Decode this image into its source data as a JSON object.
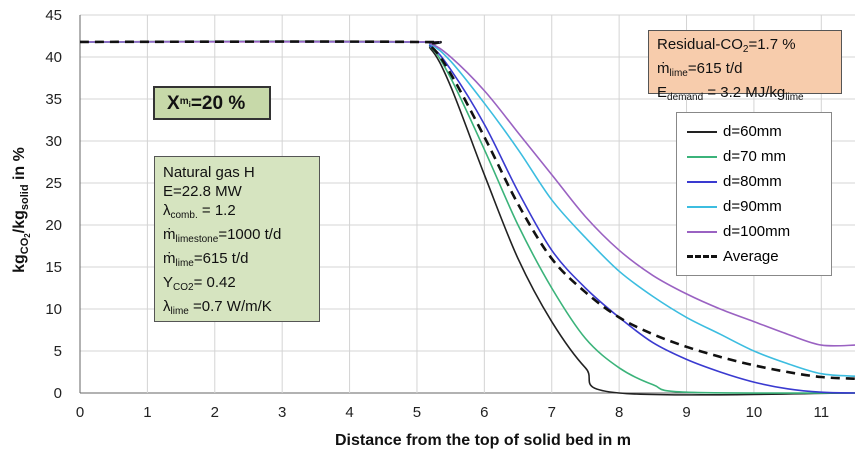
{
  "chart_data": {
    "type": "line",
    "xlabel": "Distance from the top of solid bed in m",
    "ylabel": {
      "base": "kg",
      "sub1": "CO",
      "sub1b": "2",
      "mid": "/kg",
      "sub2": "solid",
      "tail": " in %"
    },
    "xlim": [
      0,
      11.5
    ],
    "ylim": [
      0,
      45
    ],
    "xticks": [
      "0",
      "1",
      "2",
      "3",
      "4",
      "5",
      "6",
      "7",
      "8",
      "9",
      "10",
      "11"
    ],
    "yticks": [
      "0",
      "5",
      "10",
      "15",
      "20",
      "25",
      "30",
      "35",
      "40",
      "45"
    ],
    "grid": true,
    "series": [
      {
        "name": "d=60mm",
        "color": "#222222",
        "dash": false,
        "points": [
          [
            0,
            41.8
          ],
          [
            4.9,
            41.8
          ],
          [
            5.2,
            41
          ],
          [
            5.5,
            36.5
          ],
          [
            6,
            26
          ],
          [
            6.5,
            16
          ],
          [
            7,
            8.5
          ],
          [
            7.5,
            3
          ],
          [
            8,
            0
          ],
          [
            11.5,
            0
          ]
        ]
      },
      {
        "name": "d=70 mm",
        "color": "#3bb37a",
        "dash": false,
        "points": [
          [
            0,
            41.8
          ],
          [
            4.9,
            41.8
          ],
          [
            5.2,
            41.2
          ],
          [
            5.5,
            37.5
          ],
          [
            6,
            29
          ],
          [
            6.5,
            20
          ],
          [
            7,
            12.5
          ],
          [
            7.5,
            6.5
          ],
          [
            8,
            3
          ],
          [
            8.5,
            1
          ],
          [
            9,
            0.1
          ],
          [
            11.5,
            0
          ]
        ]
      },
      {
        "name": "d=80mm",
        "color": "#3a3ad0",
        "dash": false,
        "points": [
          [
            0,
            41.8
          ],
          [
            4.9,
            41.8
          ],
          [
            5.2,
            41.3
          ],
          [
            5.5,
            38.5
          ],
          [
            6,
            32
          ],
          [
            6.5,
            24
          ],
          [
            7,
            17
          ],
          [
            7.5,
            12.5
          ],
          [
            8,
            9
          ],
          [
            8.5,
            6
          ],
          [
            9,
            4
          ],
          [
            9.5,
            2.5
          ],
          [
            10,
            1.3
          ],
          [
            10.5,
            0.5
          ],
          [
            11,
            0.1
          ],
          [
            11.5,
            0
          ]
        ]
      },
      {
        "name": "d=90mm",
        "color": "#3cbde0",
        "dash": false,
        "points": [
          [
            0,
            41.8
          ],
          [
            4.9,
            41.8
          ],
          [
            5.2,
            41.5
          ],
          [
            5.5,
            39.5
          ],
          [
            6,
            34.5
          ],
          [
            6.5,
            29
          ],
          [
            7,
            23
          ],
          [
            7.5,
            18.5
          ],
          [
            8,
            14.5
          ],
          [
            8.5,
            11.5
          ],
          [
            9,
            9
          ],
          [
            9.5,
            7
          ],
          [
            10,
            5
          ],
          [
            10.5,
            3.5
          ],
          [
            11,
            2.3
          ],
          [
            11.5,
            2
          ]
        ]
      },
      {
        "name": "d=100mm",
        "color": "#9a62c2",
        "dash": false,
        "points": [
          [
            0,
            41.8
          ],
          [
            4.9,
            41.8
          ],
          [
            5.2,
            41.6
          ],
          [
            5.5,
            40
          ],
          [
            6,
            36
          ],
          [
            6.5,
            31
          ],
          [
            7,
            26
          ],
          [
            7.5,
            21
          ],
          [
            8,
            17
          ],
          [
            8.5,
            14
          ],
          [
            9,
            11.8
          ],
          [
            9.5,
            10
          ],
          [
            10,
            8.5
          ],
          [
            10.5,
            7
          ],
          [
            11,
            5.7
          ],
          [
            11.5,
            5.7
          ]
        ]
      },
      {
        "name": "Average",
        "color": "#111111",
        "dash": true,
        "points": [
          [
            0,
            41.8
          ],
          [
            4.9,
            41.8
          ],
          [
            5.2,
            41.3
          ],
          [
            5.5,
            38
          ],
          [
            6,
            30.5
          ],
          [
            6.5,
            22.5
          ],
          [
            7,
            16
          ],
          [
            7.5,
            12
          ],
          [
            8,
            9
          ],
          [
            8.5,
            7
          ],
          [
            9,
            5.5
          ],
          [
            9.5,
            4.3
          ],
          [
            10,
            3.3
          ],
          [
            10.5,
            2.5
          ],
          [
            11,
            1.9
          ],
          [
            11.5,
            1.7
          ]
        ]
      }
    ]
  },
  "annotations": {
    "x_box": {
      "X": "X",
      "sub": "m",
      "subsub": "i",
      "rest": "=20 %"
    },
    "params": [
      {
        "pre": "Natural gas H"
      },
      {
        "pre": "E=22.8 MW"
      },
      {
        "pre": "λ",
        "sub": "comb.",
        "post": " = 1.2"
      },
      {
        "pre": "ṁ",
        "sub": "limestone",
        "post": "=1000 t/d"
      },
      {
        "pre": "ṁ",
        "sub": "lime",
        "post": "=615 t/d"
      },
      {
        "pre": "Y",
        "sub": "CO2",
        "post": "= 0.42"
      },
      {
        "pre": "λ",
        "sub": "lime",
        "post": " =0.7 W/m/K"
      }
    ],
    "residual": [
      {
        "pre": "Residual-CO",
        "sub": "2",
        "post": "=1.7 %"
      },
      {
        "pre": "ṁ",
        "sub": "lime",
        "post": "=615 t/d"
      },
      {
        "pre": "E",
        "sub": "demand",
        "post": " = 3.2 MJ/kg",
        "sub2": "lime"
      }
    ]
  }
}
